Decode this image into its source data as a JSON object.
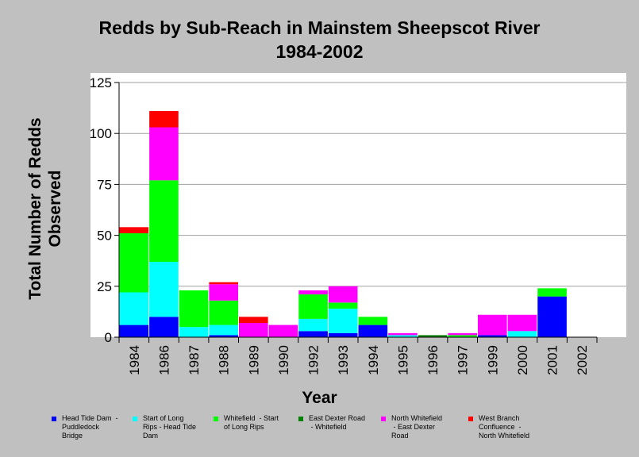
{
  "chart_data": {
    "type": "bar",
    "stacked": true,
    "title": "Redds by Sub-Reach in Mainstem Sheepscot River",
    "subtitle": "1984-2002",
    "xlabel": "Year",
    "ylabel_lines": [
      "Total Number of Redds",
      "Observed"
    ],
    "ylim": [
      0,
      125
    ],
    "yticks": [
      "0",
      "25",
      "50",
      "75",
      "100",
      "125"
    ],
    "grid": true,
    "legend_position": "bottom",
    "categories": [
      "1984",
      "1986",
      "1987",
      "1988",
      "1989",
      "1990",
      "1992",
      "1993",
      "1994",
      "1995",
      "1996",
      "1997",
      "1999",
      "2000",
      "2001",
      "2002"
    ],
    "series": [
      {
        "name": "Head Tide Dam  -\nPuddledock\nBridge",
        "color": "#0000ff",
        "values": [
          6,
          10,
          0,
          1,
          0,
          0,
          3,
          2,
          6,
          0,
          0,
          0,
          1,
          0,
          20,
          0
        ]
      },
      {
        "name": "Start of Long\nRips - Head Tide\nDam",
        "color": "#00ffff",
        "values": [
          16,
          27,
          5,
          5,
          0,
          0,
          6,
          12,
          0,
          1,
          0,
          0,
          0,
          3,
          0,
          0
        ]
      },
      {
        "name": "Whitefield  - Start\nof Long Rips",
        "color": "#00ff00",
        "values": [
          29,
          40,
          18,
          12,
          0,
          0,
          12,
          3,
          4,
          0,
          0,
          1,
          0,
          0,
          4,
          0
        ]
      },
      {
        "name": "East Dexter Road\n - Whitefield",
        "color": "#008000",
        "values": [
          0,
          0,
          0,
          0,
          0,
          0,
          0,
          0,
          0,
          0,
          1,
          0,
          0,
          0,
          0,
          0
        ]
      },
      {
        "name": "North Whitefield\n - East Dexter\nRoad",
        "color": "#ff00ff",
        "values": [
          0,
          26,
          0,
          8,
          7,
          6,
          2,
          8,
          0,
          1,
          0,
          1,
          10,
          8,
          0,
          0
        ]
      },
      {
        "name": "West Branch\nConfluence  -\nNorth Whitefield",
        "color": "#ff0000",
        "values": [
          3,
          8,
          0,
          1,
          3,
          0,
          0,
          0,
          0,
          0,
          0,
          0,
          0,
          0,
          0,
          0
        ]
      }
    ]
  },
  "colors": {
    "background": "#c0c0c0",
    "plot_area": "#ffffff",
    "gridline": "#a0a0a0"
  }
}
